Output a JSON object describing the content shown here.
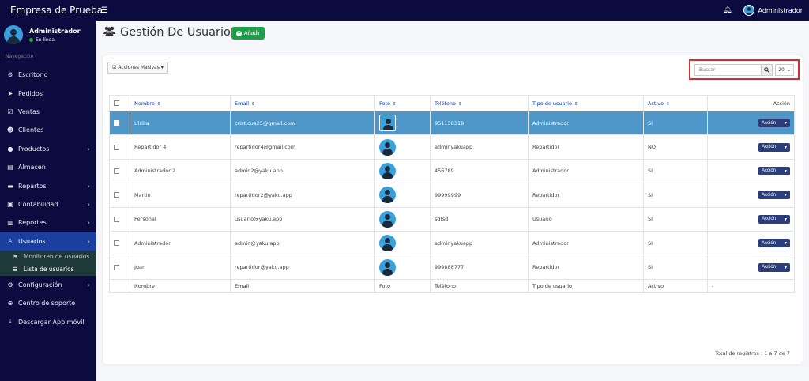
{
  "brand": "Empresa de Prueba",
  "topbar": {
    "user": "Administrador"
  },
  "sidebar": {
    "user_name": "Administrador",
    "user_status": "En línea",
    "nav_header": "Navegación",
    "items": [
      {
        "label": "Escritorio",
        "icon": "gauge-icon",
        "glyph": "⚙"
      },
      {
        "label": "Pedidos",
        "icon": "paper-plane-icon",
        "glyph": "➤"
      },
      {
        "label": "Ventas",
        "icon": "check-square-icon",
        "glyph": "☑"
      },
      {
        "label": "Clientes",
        "icon": "users-icon",
        "glyph": "☻"
      },
      {
        "label": "Productos",
        "icon": "box-icon",
        "glyph": "●",
        "chevron": true
      },
      {
        "label": "Almacén",
        "icon": "file-icon",
        "glyph": "▤"
      },
      {
        "label": "Repartos",
        "icon": "truck-icon",
        "glyph": "▬",
        "chevron": true
      },
      {
        "label": "Contabilidad",
        "icon": "money-icon",
        "glyph": "▣",
        "chevron": true
      },
      {
        "label": "Reportes",
        "icon": "chart-icon",
        "glyph": "▥",
        "chevron": true
      },
      {
        "label": "Usuarios",
        "icon": "user-lock-icon",
        "glyph": "♙",
        "chevron": true,
        "active": true
      }
    ],
    "sub_items": [
      {
        "label": "Monitoreo de usuarios",
        "icon": "flag-icon",
        "glyph": "⚑"
      },
      {
        "label": "Lista de usuarios",
        "icon": "list-icon",
        "glyph": "☰"
      }
    ],
    "items_after": [
      {
        "label": "Configuración",
        "icon": "cogs-icon",
        "glyph": "⚙",
        "chevron": true
      },
      {
        "label": "Centro de soporte",
        "icon": "globe-icon",
        "glyph": "⊕"
      },
      {
        "label": "Descargar App móvil",
        "icon": "download-icon",
        "glyph": "⤓"
      }
    ]
  },
  "page": {
    "title": "Gestión De Usuarios",
    "add_label": "Añadir",
    "bulk_label": "Acciones Masivas",
    "search_placeholder": "Buscar",
    "per_page": "20",
    "total_text": "Total de registros : 1 a 7 de 7"
  },
  "table": {
    "headers": [
      "Nombre",
      "Email",
      "Foto",
      "Teléfono",
      "Tipo de usuario",
      "Activo",
      "Acción"
    ],
    "footer": [
      "Nombre",
      "Email",
      "Foto",
      "Teléfono",
      "Tipo de usuario",
      "Activo",
      "-"
    ],
    "action_label": "Acción",
    "rows": [
      {
        "nombre": "Ulrilla",
        "email": "crist.cua25@gmail.com",
        "telefono": "951138319",
        "tipo": "Administrador",
        "activo": "SI",
        "selected": true
      },
      {
        "nombre": "Repartidor 4",
        "email": "repartidor4@gmail.com",
        "telefono": "adminyakuapp",
        "tipo": "Repartidor",
        "activo": "NO"
      },
      {
        "nombre": "Administrador 2",
        "email": "admin2@yaku.app",
        "telefono": "456789",
        "tipo": "Administrador",
        "activo": "SI"
      },
      {
        "nombre": "Martin",
        "email": "repartidor2@yaku.app",
        "telefono": "99999999",
        "tipo": "Repartidor",
        "activo": "SI"
      },
      {
        "nombre": "Personal",
        "email": "usuario@yaku.app",
        "telefono": "sdfsd",
        "tipo": "Usuario",
        "activo": "SI"
      },
      {
        "nombre": "Administrador",
        "email": "admin@yaku.app",
        "telefono": "adminyakuapp",
        "tipo": "Administrador",
        "activo": "SI"
      },
      {
        "nombre": "Juan",
        "email": "repartidor@yaku.app",
        "telefono": "999888777",
        "tipo": "Repartidor",
        "activo": "SI"
      }
    ]
  },
  "colors": {
    "sidebar": "#0b0b3f",
    "active_nav": "#1b3f9e",
    "selected_row": "#4f97c9",
    "add_button": "#1e9e49",
    "action_button": "#2c3e7a",
    "highlight_box": "#d32f2f"
  }
}
